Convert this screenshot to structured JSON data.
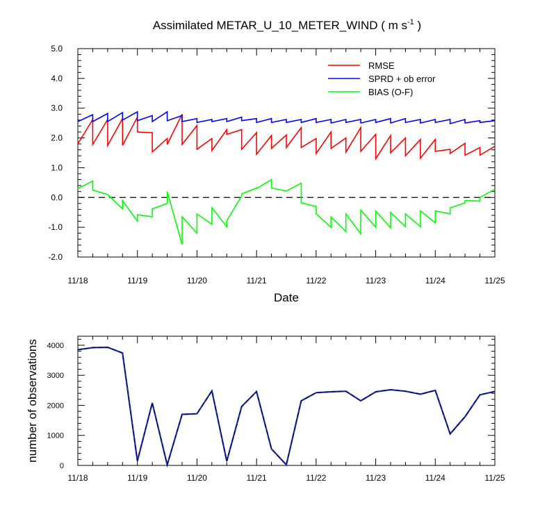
{
  "colors": {
    "rmse": "#ff0000",
    "spread": "#0000ff",
    "bias": "#00ff00",
    "obs_total": "#1a2f8a",
    "obs_used": "#000080",
    "zero_line": "#000000"
  },
  "chart_data": [
    {
      "type": "line",
      "title": "Assimilated METAR_U_10_METER_WIND ( m s",
      "title_exponent": "-1",
      "title_close": " )",
      "xlabel": "Date",
      "ylabel": "",
      "x_ticks": [
        "11/18",
        "11/19",
        "11/20",
        "11/21",
        "11/22",
        "11/23",
        "11/24",
        "11/25"
      ],
      "x_range": [
        "11/18 00:00",
        "11/25 00:00"
      ],
      "ylim": [
        -2.0,
        5.0
      ],
      "y_ticks": [
        "-2.0",
        "-1.0",
        "0.0",
        "1.0",
        "2.0",
        "3.0",
        "4.0",
        "5.0"
      ],
      "grid": false,
      "zero_line": "dashed",
      "legend_position": "top-right",
      "x_unit": "hours since 11/18 00:00, 6-hourly cycles",
      "series": [
        {
          "name": "RMSE",
          "x": [
            0,
            6,
            6,
            12,
            12,
            18,
            18,
            24,
            24,
            30,
            30,
            36,
            36,
            42,
            42,
            48,
            48,
            54,
            54,
            60,
            60,
            66,
            66,
            72,
            72,
            78,
            78,
            84,
            84,
            90,
            90,
            96,
            96,
            102,
            102,
            108,
            108,
            114,
            114,
            120,
            120,
            126,
            126,
            132,
            132,
            138,
            138,
            144,
            144,
            150,
            150,
            156,
            156,
            162,
            162,
            168
          ],
          "values": [
            1.8,
            2.62,
            1.78,
            2.62,
            1.75,
            2.65,
            1.75,
            2.7,
            2.2,
            2.18,
            1.53,
            1.98,
            1.78,
            2.8,
            1.78,
            2.42,
            1.62,
            1.98,
            1.58,
            2.28,
            2.12,
            2.28,
            1.62,
            2.18,
            1.45,
            2.08,
            1.65,
            2.1,
            1.68,
            2.35,
            1.68,
            1.98,
            1.48,
            2.2,
            1.65,
            2.0,
            1.52,
            2.35,
            1.55,
            2.12,
            1.3,
            2.08,
            1.5,
            2.0,
            1.4,
            1.95,
            1.32,
            1.95,
            1.55,
            1.62,
            1.48,
            1.82,
            1.42,
            1.68,
            1.42,
            1.72
          ]
        },
        {
          "name": "SPRD + ob error",
          "x": [
            0,
            6,
            6,
            12,
            12,
            18,
            18,
            24,
            24,
            30,
            30,
            36,
            36,
            42,
            42,
            48,
            48,
            54,
            54,
            60,
            60,
            66,
            66,
            72,
            72,
            78,
            78,
            84,
            84,
            90,
            90,
            96,
            96,
            102,
            102,
            108,
            108,
            114,
            114,
            120,
            120,
            126,
            126,
            132,
            132,
            138,
            138,
            144,
            144,
            150,
            150,
            156,
            156,
            162,
            162,
            168
          ],
          "values": [
            2.55,
            2.78,
            2.55,
            2.82,
            2.55,
            2.85,
            2.6,
            2.88,
            2.58,
            2.75,
            2.55,
            2.88,
            2.58,
            2.75,
            2.55,
            2.65,
            2.52,
            2.62,
            2.55,
            2.65,
            2.55,
            2.7,
            2.58,
            2.65,
            2.52,
            2.65,
            2.52,
            2.62,
            2.52,
            2.62,
            2.52,
            2.65,
            2.52,
            2.62,
            2.5,
            2.62,
            2.52,
            2.62,
            2.5,
            2.62,
            2.52,
            2.65,
            2.5,
            2.65,
            2.52,
            2.62,
            2.5,
            2.62,
            2.52,
            2.62,
            2.48,
            2.62,
            2.5,
            2.58,
            2.52,
            2.58
          ]
        },
        {
          "name": "BIAS (O-F)",
          "x": [
            0,
            6,
            6,
            12,
            12,
            18,
            18,
            24,
            24,
            30,
            30,
            36,
            36,
            42,
            42,
            48,
            48,
            54,
            54,
            60,
            60,
            66,
            66,
            72,
            72,
            78,
            78,
            84,
            84,
            90,
            90,
            96,
            96,
            102,
            102,
            108,
            108,
            114,
            114,
            120,
            120,
            126,
            126,
            132,
            132,
            138,
            138,
            144,
            144,
            150,
            150,
            156,
            156,
            162,
            162,
            168
          ],
          "values": [
            0.3,
            0.55,
            0.25,
            0.1,
            0.1,
            -0.38,
            -0.1,
            -0.8,
            -0.58,
            -0.65,
            -0.38,
            -0.2,
            0.2,
            -1.58,
            -0.65,
            -1.2,
            -0.55,
            -0.9,
            -0.35,
            -0.98,
            -0.78,
            0.05,
            0.12,
            0.32,
            0.3,
            0.6,
            0.32,
            0.22,
            0.22,
            0.48,
            -0.18,
            -0.3,
            -0.55,
            -1.0,
            -0.65,
            -1.15,
            -0.55,
            -1.22,
            -0.42,
            -1.0,
            -0.45,
            -1.02,
            -0.5,
            -0.98,
            -0.55,
            -0.98,
            -0.45,
            -0.85,
            -0.45,
            -0.55,
            -0.35,
            -0.18,
            -0.1,
            -0.12,
            0.0,
            0.28
          ]
        }
      ]
    },
    {
      "type": "line",
      "title": "",
      "xlabel": "",
      "ylabel": "number of observations",
      "x_ticks": [
        "11/18",
        "11/19",
        "11/20",
        "11/21",
        "11/22",
        "11/23",
        "11/24",
        "11/25"
      ],
      "x_range": [
        "11/18 00:00",
        "11/25 00:00"
      ],
      "ylim": [
        0,
        4300
      ],
      "y_ticks": [
        "0",
        "1000",
        "2000",
        "3000",
        "4000"
      ],
      "grid": false,
      "x_unit": "hours since 11/18 00:00, 6-hourly cycles",
      "series": [
        {
          "x": [
            0,
            6,
            12,
            18,
            24,
            30,
            36,
            42,
            48,
            54,
            60,
            66,
            72,
            78,
            84,
            90,
            96,
            102,
            108,
            114,
            120,
            126,
            132,
            138,
            144,
            150,
            156,
            162,
            168
          ],
          "values": [
            3850,
            3920,
            3930,
            3740,
            150,
            2080,
            20,
            1700,
            1720,
            2480,
            140,
            1960,
            2460,
            550,
            20,
            2150,
            2420,
            2450,
            2470,
            2150,
            2450,
            2520,
            2470,
            2370,
            2500,
            1050,
            1620,
            2350,
            2460
          ]
        }
      ]
    }
  ]
}
